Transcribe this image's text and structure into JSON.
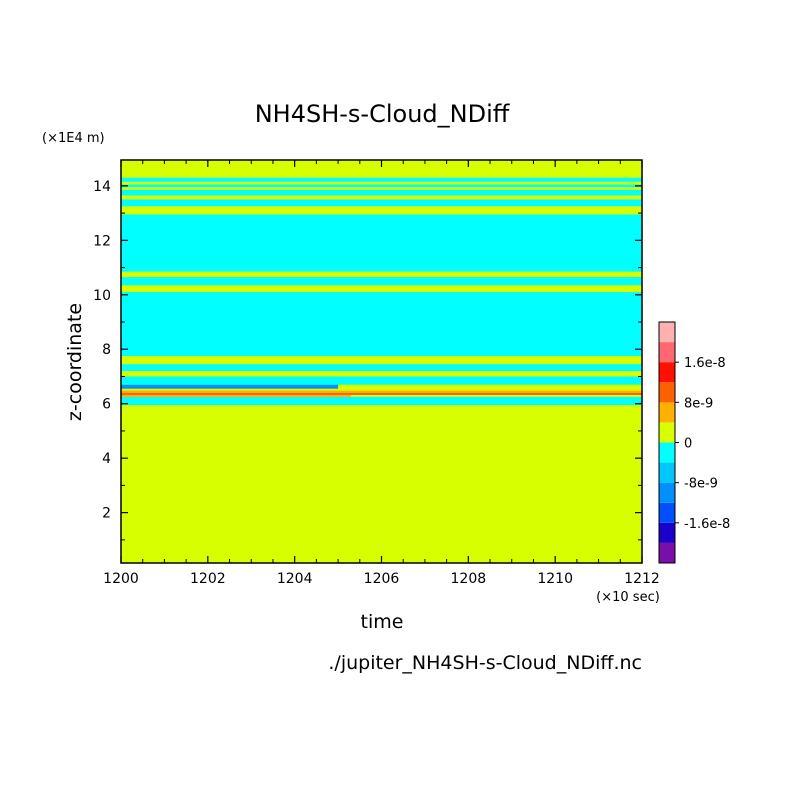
{
  "chart_data": {
    "type": "heatmap",
    "title": "NH4SH-s-Cloud_NDiff",
    "xlabel": "time",
    "ylabel": "z-coordinate",
    "x_unit": "(×10 sec)",
    "y_unit": "(×1E4 m)",
    "source_file": "./jupiter_NH4SH-s-Cloud_NDiff.nc",
    "xlim": [
      1200,
      1212
    ],
    "ylim": [
      0.15,
      14.95
    ],
    "x_ticks": [
      1200,
      1202,
      1204,
      1206,
      1208,
      1210,
      1212
    ],
    "x_tick_labels": [
      "1200",
      "1202",
      "1204",
      "1206",
      "1208",
      "1210",
      "1212"
    ],
    "y_ticks": [
      2,
      4,
      6,
      8,
      10,
      12,
      14
    ],
    "y_tick_labels": [
      "2",
      "4",
      "6",
      "8",
      "10",
      "12",
      "14"
    ],
    "colorbar": {
      "levels": [
        -2.4e-08,
        -2e-08,
        -1.6e-08,
        -1.2e-08,
        -8e-09,
        -4e-09,
        0,
        4e-09,
        8e-09,
        1.2e-08,
        1.6e-08,
        2e-08,
        2.4e-08
      ],
      "colors": [
        "#7a0ea8",
        "#1a00c8",
        "#0050ff",
        "#0090ff",
        "#00c8ff",
        "#00ffff",
        "#d7ff00",
        "#ffb000",
        "#ff6000",
        "#ff1000",
        "#ff6870",
        "#ffb0b0"
      ],
      "labels": [
        {
          "text": "1.6e-8",
          "value": 1.6e-08
        },
        {
          "text": "8e-9",
          "value": 8e-09
        },
        {
          "text": "0",
          "value": 0
        },
        {
          "text": "-8e-9",
          "value": -8e-09
        },
        {
          "text": "-1.6e-8",
          "value": -1.6e-08
        }
      ]
    },
    "background_color": "#d7ff00",
    "bands": [
      {
        "z0": 5.95,
        "z1": 6.25,
        "x0": 1200,
        "x1": 1212,
        "color": "#00ffff"
      },
      {
        "z0": 6.25,
        "z1": 6.32,
        "x0": 1200,
        "x1": 1205.3,
        "color": "#ffb000"
      },
      {
        "z0": 6.32,
        "z1": 6.4,
        "x0": 1200,
        "x1": 1212,
        "color": "#ff6000"
      },
      {
        "z0": 6.4,
        "z1": 6.48,
        "x0": 1200,
        "x1": 1212,
        "color": "#ffb000"
      },
      {
        "z0": 6.55,
        "z1": 6.7,
        "x0": 1200,
        "x1": 1205.0,
        "color": "#0090ff"
      },
      {
        "z0": 6.7,
        "z1": 7.0,
        "x0": 1200,
        "x1": 1212,
        "color": "#00ffff"
      },
      {
        "z0": 7.2,
        "z1": 7.45,
        "x0": 1200,
        "x1": 1212,
        "color": "#00ffff"
      },
      {
        "z0": 7.75,
        "z1": 10.1,
        "x0": 1200,
        "x1": 1212,
        "color": "#00ffff"
      },
      {
        "z0": 10.35,
        "z1": 10.65,
        "x0": 1200,
        "x1": 1212,
        "color": "#00ffff"
      },
      {
        "z0": 10.85,
        "z1": 12.95,
        "x0": 1200,
        "x1": 1212,
        "color": "#00ffff"
      },
      {
        "z0": 13.25,
        "z1": 13.5,
        "x0": 1200,
        "x1": 1212,
        "color": "#00ffff"
      },
      {
        "z0": 13.65,
        "z1": 13.85,
        "x0": 1200,
        "x1": 1212,
        "color": "#00ffff"
      },
      {
        "z0": 13.95,
        "z1": 14.05,
        "x0": 1200,
        "x1": 1212,
        "color": "#00ffff"
      },
      {
        "z0": 14.15,
        "z1": 14.3,
        "x0": 1200,
        "x1": 1212,
        "color": "#00ffff"
      }
    ]
  }
}
